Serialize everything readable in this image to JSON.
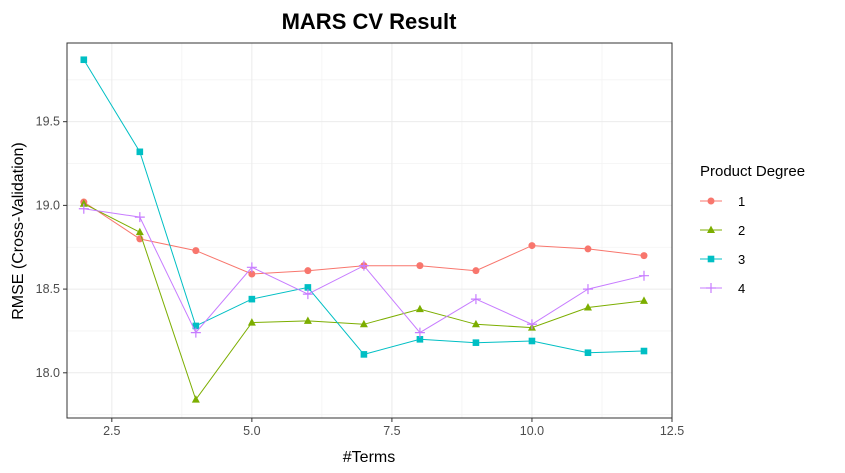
{
  "chart_data": {
    "type": "line",
    "title": "MARS CV Result",
    "xlabel": "#Terms",
    "ylabel": "RMSE (Cross-Validation)",
    "xlim": [
      1.7,
      12.5
    ],
    "ylim": [
      17.73,
      19.97
    ],
    "x_ticks": [
      "2.5",
      "5.0",
      "7.5",
      "10.0",
      "12.5"
    ],
    "y_ticks": [
      "18.0",
      "18.5",
      "19.0",
      "19.5"
    ],
    "x_tick_values": [
      2.5,
      5.0,
      7.5,
      10.0,
      12.5
    ],
    "y_tick_values": [
      18.0,
      18.5,
      19.0,
      19.5
    ],
    "grid": true,
    "legend": {
      "title": "Product Degree",
      "position": "right"
    },
    "x": [
      2,
      3,
      4,
      5,
      6,
      7,
      8,
      9,
      10,
      11,
      12
    ],
    "series": [
      {
        "name": "1",
        "color": "#F8766D",
        "marker": "circle",
        "values": [
          19.02,
          18.8,
          18.73,
          18.59,
          18.61,
          18.64,
          18.64,
          18.61,
          18.76,
          18.74,
          18.7
        ]
      },
      {
        "name": "2",
        "color": "#7CAE00",
        "marker": "triangle",
        "values": [
          19.01,
          18.84,
          17.84,
          18.3,
          18.31,
          18.29,
          18.38,
          18.29,
          18.27,
          18.39,
          18.43
        ]
      },
      {
        "name": "3",
        "color": "#00BFC4",
        "marker": "square",
        "values": [
          19.87,
          19.32,
          18.28,
          18.44,
          18.51,
          18.11,
          18.2,
          18.18,
          18.19,
          18.12,
          18.13
        ]
      },
      {
        "name": "4",
        "color": "#C77CFF",
        "marker": "plus",
        "values": [
          18.98,
          18.93,
          18.24,
          18.63,
          18.47,
          18.64,
          18.24,
          18.44,
          18.29,
          18.5,
          18.58
        ]
      }
    ]
  }
}
